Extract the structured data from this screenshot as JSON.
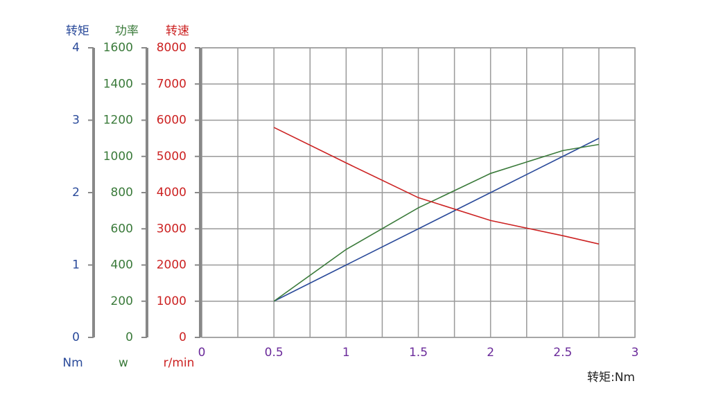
{
  "chart_data": {
    "type": "line",
    "x_label": "转矩:Nm",
    "xlim": [
      0,
      3
    ],
    "xticks": [
      0,
      0.5,
      1,
      1.5,
      2,
      2.5,
      3
    ],
    "x_tick_color": "#6a2a9a",
    "grid": true,
    "axes": [
      {
        "title": "转矩",
        "unit": "Nm",
        "color": "#2a4a9a",
        "lim": [
          0,
          4
        ],
        "ticks": [
          0,
          1,
          2,
          3,
          4
        ]
      },
      {
        "title": "功率",
        "unit": "w",
        "color": "#3a7a3a",
        "lim": [
          0,
          1600
        ],
        "ticks": [
          0,
          200,
          400,
          600,
          800,
          1000,
          1200,
          1400,
          1600
        ]
      },
      {
        "title": "转速",
        "unit": "r/min",
        "color": "#cc2222",
        "lim": [
          0,
          8000
        ],
        "ticks": [
          0,
          1000,
          2000,
          3000,
          4000,
          5000,
          6000,
          7000,
          8000
        ]
      }
    ],
    "x": [
      0.5,
      1,
      1.5,
      2,
      2.5,
      2.75
    ],
    "series": [
      {
        "axis": 0,
        "color": "#2a4a9a",
        "values": [
          0.5,
          1,
          1.5,
          2,
          2.5,
          2.75
        ]
      },
      {
        "axis": 1,
        "color": "#3a7a3a",
        "values": [
          200,
          486,
          716,
          906,
          1032,
          1066
        ]
      },
      {
        "axis": 2,
        "color": "#cc2222",
        "values": [
          5800,
          4820,
          3860,
          3230,
          2810,
          2580
        ]
      }
    ]
  }
}
